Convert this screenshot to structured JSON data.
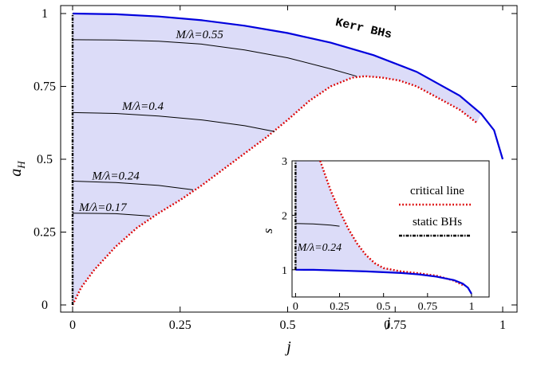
{
  "chart_data": [
    {
      "type": "line",
      "xlabel": "j",
      "ylabel": "a_H",
      "xlim": [
        0,
        1
      ],
      "ylim": [
        0,
        1
      ],
      "x_ticks": [
        "0",
        "0.25",
        "0.5",
        "0.75",
        "1"
      ],
      "y_ticks": [
        "0",
        "0.25",
        "0.5",
        "0.75",
        "1"
      ],
      "grid": false,
      "shaded_region": "domain of existence (light lavender) bounded by the Kerr BH line, the static BH axis j=0 and the critical line",
      "colors": {
        "kerr": "#0000dd",
        "critical": "#dd0000",
        "fill": "#dcdcf8",
        "curves": "#000000"
      },
      "series": [
        {
          "name": "Kerr BHs",
          "style": "solid-blue",
          "x": [
            0,
            0.1,
            0.2,
            0.3,
            0.4,
            0.5,
            0.6,
            0.7,
            0.8,
            0.9,
            0.95,
            0.98,
            1.0
          ],
          "y": [
            1,
            0.9975,
            0.9899,
            0.977,
            0.9583,
            0.933,
            0.9,
            0.857,
            0.8,
            0.7179,
            0.6561,
            0.5995,
            0.5
          ]
        },
        {
          "name": "critical line",
          "style": "dotted-red",
          "x": [
            0,
            0.02,
            0.05,
            0.1,
            0.15,
            0.2,
            0.25,
            0.3,
            0.35,
            0.4,
            0.45,
            0.5,
            0.55,
            0.6,
            0.65,
            0.68,
            0.72,
            0.76,
            0.8,
            0.85,
            0.9,
            0.94
          ],
          "y": [
            0,
            0.06,
            0.12,
            0.2,
            0.265,
            0.315,
            0.36,
            0.41,
            0.465,
            0.52,
            0.575,
            0.635,
            0.7,
            0.75,
            0.78,
            0.785,
            0.78,
            0.77,
            0.75,
            0.71,
            0.67,
            0.625
          ]
        },
        {
          "name": "M/λ=0.55",
          "label": "M/λ=0.55",
          "style": "thin-black",
          "x": [
            0,
            0.1,
            0.2,
            0.3,
            0.4,
            0.5,
            0.6,
            0.66
          ],
          "y": [
            0.91,
            0.909,
            0.905,
            0.895,
            0.875,
            0.848,
            0.81,
            0.785
          ]
        },
        {
          "name": "M/λ=0.4",
          "label": "M/λ=0.4",
          "style": "thin-black",
          "x": [
            0,
            0.1,
            0.2,
            0.3,
            0.4,
            0.47
          ],
          "y": [
            0.66,
            0.657,
            0.648,
            0.635,
            0.615,
            0.595
          ]
        },
        {
          "name": "M/λ=0.24",
          "label": "M/λ=0.24",
          "style": "thin-black",
          "x": [
            0,
            0.1,
            0.2,
            0.28
          ],
          "y": [
            0.425,
            0.42,
            0.41,
            0.395
          ]
        },
        {
          "name": "M/λ=0.17",
          "label": "M/λ=0.17",
          "style": "thin-black",
          "x": [
            0,
            0.1,
            0.18
          ],
          "y": [
            0.315,
            0.313,
            0.305
          ]
        },
        {
          "name": "static BHs",
          "style": "dash-dot-black",
          "x": [
            0,
            0
          ],
          "y": [
            0,
            1
          ]
        }
      ],
      "annotations": [
        {
          "text": "Kerr BHs",
          "x": 0.61,
          "y": 0.96,
          "angle": 13
        },
        {
          "text": "M/λ=0.55",
          "x": 0.24,
          "y": 0.915
        },
        {
          "text": "M/λ=0.4",
          "x": 0.115,
          "y": 0.67
        },
        {
          "text": "M/λ=0.24",
          "x": 0.045,
          "y": 0.43
        },
        {
          "text": "M/λ=0.17",
          "x": 0.015,
          "y": 0.322
        }
      ]
    },
    {
      "type": "line",
      "inset": true,
      "xlabel": "j",
      "ylabel": "s",
      "xlim": [
        -0.02,
        1.1
      ],
      "ylim": [
        0.5,
        3
      ],
      "x_ticks": [
        "0",
        "0.25",
        "0.5",
        "0.75",
        "1"
      ],
      "y_ticks": [
        "1",
        "2",
        "3"
      ],
      "legend": {
        "placement": "top-right",
        "entries": [
          "critical line",
          "static BHs"
        ]
      },
      "series": [
        {
          "name": "critical line",
          "style": "dotted-red",
          "x": [
            0.14,
            0.2,
            0.25,
            0.3,
            0.35,
            0.4,
            0.45,
            0.5,
            0.6,
            0.7,
            0.8,
            0.9,
            0.95
          ],
          "y": [
            3.0,
            2.45,
            2.08,
            1.75,
            1.48,
            1.27,
            1.12,
            1.03,
            0.97,
            0.935,
            0.89,
            0.8,
            0.72
          ]
        },
        {
          "name": "Kerr BHs",
          "style": "solid-blue",
          "x": [
            0,
            0.1,
            0.2,
            0.3,
            0.4,
            0.5,
            0.6,
            0.7,
            0.8,
            0.9,
            0.95,
            0.98,
            1.0
          ],
          "y": [
            1.0,
            0.998,
            0.99,
            0.98,
            0.97,
            0.955,
            0.94,
            0.915,
            0.875,
            0.81,
            0.745,
            0.67,
            0.56
          ]
        },
        {
          "name": "M/λ=0.24",
          "label": "M/λ=0.24",
          "style": "thin-black",
          "x": [
            0,
            0.1,
            0.2,
            0.25
          ],
          "y": [
            1.85,
            1.84,
            1.82,
            1.8
          ]
        },
        {
          "name": "static BHs",
          "style": "dash-dot-black",
          "x": [
            0,
            0
          ],
          "y": [
            1,
            3
          ]
        }
      ],
      "annotations": [
        {
          "text": "M/λ=0.24",
          "x": 0.01,
          "y": 1.35
        }
      ]
    }
  ]
}
